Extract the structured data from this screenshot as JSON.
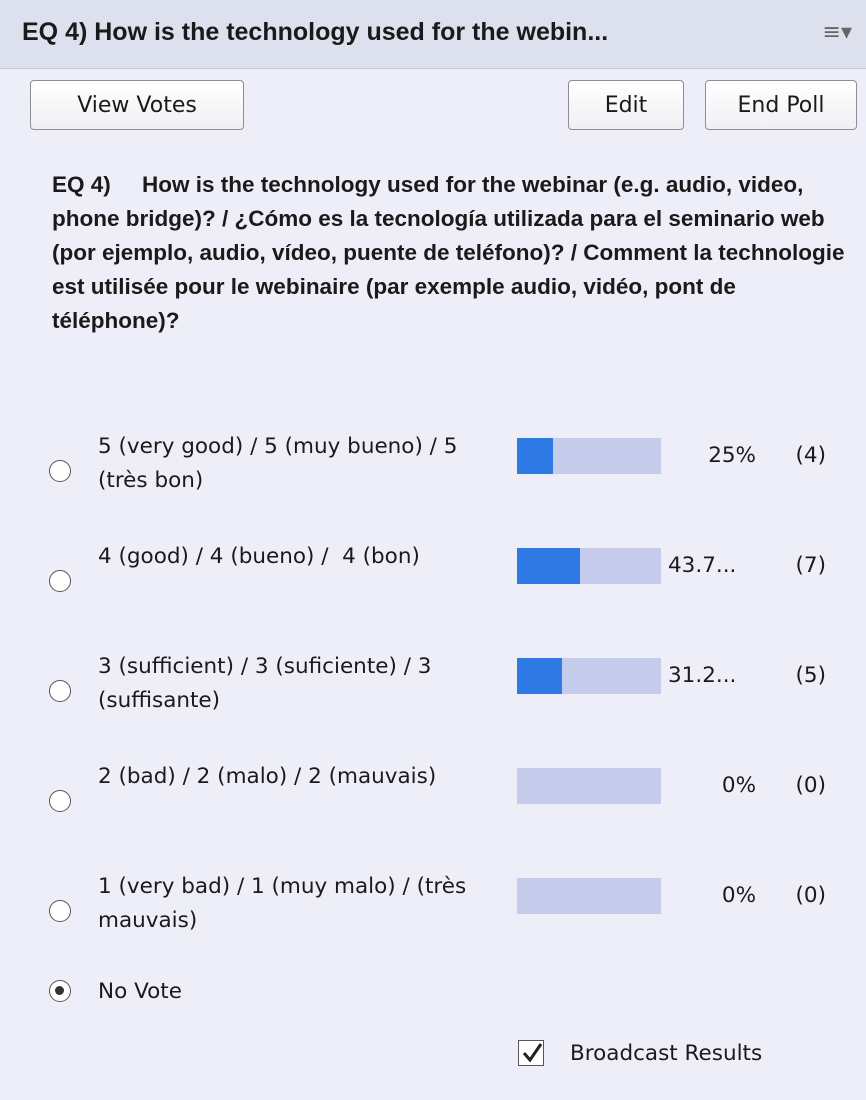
{
  "header": {
    "title": "EQ 4) How is the technology used for the webin..."
  },
  "buttons": {
    "view_votes": "View Votes",
    "edit": "Edit",
    "end_poll": "End Poll"
  },
  "question": "EQ 4)     How is the technology used for the webinar (e.g. audio, video, phone bridge)? / ¿Cómo es la tecnología utilizada para el seminario web (por ejemplo, audio, vídeo, puente de teléfono)? / Comment la technologie est utilisée pour le webinaire (par exemple audio, vidéo, pont de téléphone)?",
  "options": [
    {
      "label": "5 (very good) / 5 (muy bueno) / 5 (très bon)",
      "share": 25,
      "share_label": "25%",
      "count": "(4)"
    },
    {
      "label": "4 (good) / 4 (bueno) /  4 (bon)",
      "share": 43.75,
      "share_label": "43.7...",
      "count": "(7)"
    },
    {
      "label": "3 (sufficient) / 3 (suficiente) / 3 (suffisante)",
      "share": 31.25,
      "share_label": "31.2...",
      "count": "(5)"
    },
    {
      "label": "2 (bad) / 2 (malo) / 2 (mauvais)",
      "share": 0,
      "share_label": "0%",
      "count": "(0)"
    },
    {
      "label": "1 (very bad) / 1 (muy malo) / (très mauvais)",
      "share": 0,
      "share_label": "0%",
      "count": "(0)"
    }
  ],
  "no_vote": "No Vote",
  "broadcast": "Broadcast Results"
}
